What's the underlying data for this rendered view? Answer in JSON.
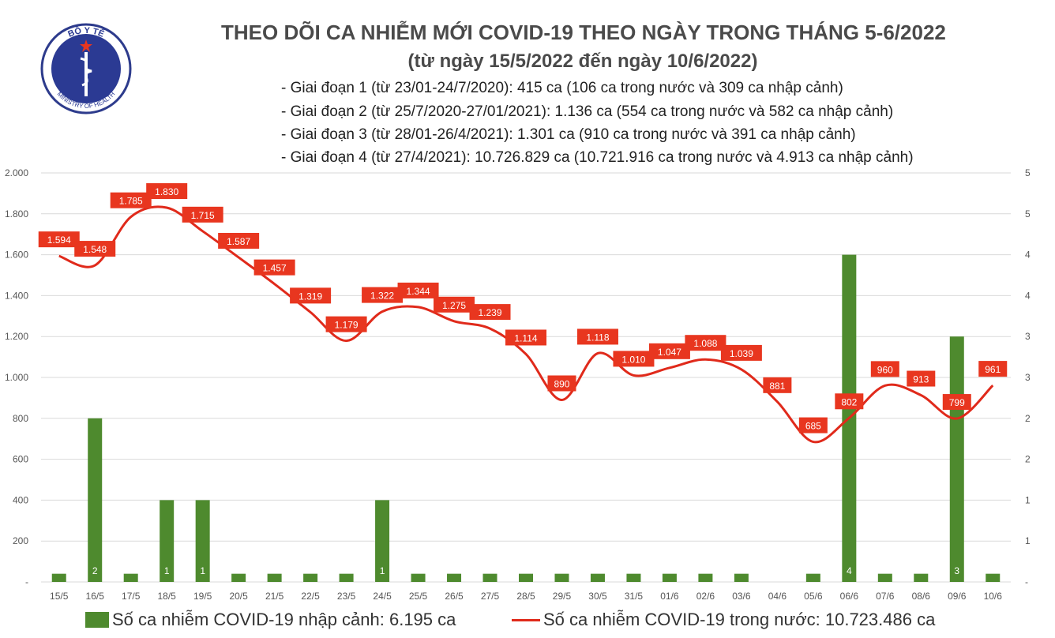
{
  "header": {
    "title": "THEO DÕI CA NHIỄM MỚI COVID-19 THEO NGÀY TRONG THÁNG 5-6/2022",
    "subtitle": "(từ ngày 15/5/2022 đến ngày 10/6/2022)",
    "stages": [
      "- Giai đoạn 1 (từ 23/01-24/7/2020): 415 ca (106 ca trong nước và 309 ca nhập cảnh)",
      "- Giai đoạn 2 (từ 25/7/2020-27/01/2021): 1.136 ca (554 ca trong nước và 582 ca nhập cảnh)",
      "- Giai đoạn 3 (từ 28/01-26/4/2021): 1.301 ca (910 ca trong nước và 391 ca nhập cảnh)",
      "- Giai đoạn 4 (từ 27/4/2021): 10.726.829 ca (10.721.916 ca trong nước và 4.913 ca nhập cảnh)"
    ]
  },
  "logo": {
    "top_text": "BỘ Y TẾ",
    "bottom_text": "MINISTRY OF HEALTH"
  },
  "legend": {
    "bar_label": "Số ca nhiễm COVID-19 nhập cảnh: 6.195 ca",
    "line_label": "Số ca nhiễm COVID-19 trong nước: 10.723.486 ca"
  },
  "colors": {
    "bar": "#4e8a2e",
    "line": "#e02a1b",
    "label_bg": "#e8361f",
    "grid": "#d9d9d9",
    "axis_text": "#555555"
  },
  "chart_data": {
    "type": "bar",
    "categories": [
      "15/5",
      "16/5",
      "17/5",
      "18/5",
      "19/5",
      "20/5",
      "21/5",
      "22/5",
      "23/5",
      "24/5",
      "25/5",
      "26/5",
      "27/5",
      "28/5",
      "29/5",
      "30/5",
      "31/5",
      "01/6",
      "02/6",
      "03/6",
      "04/6",
      "05/6",
      "06/6",
      "07/6",
      "08/6",
      "09/6",
      "10/6"
    ],
    "series": [
      {
        "name": "Số ca nhiễm COVID-19 nhập cảnh",
        "type": "bar",
        "axis": "right",
        "values": [
          0,
          2,
          0,
          1,
          1,
          0,
          0,
          0,
          0,
          1,
          0,
          0,
          0,
          0,
          0,
          0,
          0,
          0,
          0,
          0,
          null,
          0,
          4,
          0,
          0,
          3,
          0
        ],
        "labels": [
          "-",
          "2",
          "-",
          "1",
          "1",
          "-",
          "-",
          "-",
          "-",
          "1",
          "-",
          "-",
          "-",
          "-",
          "-",
          "-",
          "-",
          "-",
          "-",
          "-",
          "",
          "-",
          "4",
          "-",
          "-",
          "3",
          "-"
        ]
      },
      {
        "name": "Số ca nhiễm COVID-19 trong nước",
        "type": "line",
        "axis": "left",
        "values": [
          1594,
          1548,
          1785,
          1830,
          1715,
          1587,
          1457,
          1319,
          1179,
          1322,
          1344,
          1275,
          1239,
          1114,
          890,
          1118,
          1010,
          1047,
          1088,
          1039,
          881,
          685,
          802,
          960,
          913,
          799,
          961
        ],
        "labels": [
          "1.594",
          "1.548",
          "1.785",
          "1.830",
          "1.715",
          "1.587",
          "1.457",
          "1.319",
          "1.179",
          "1.322",
          "1.344",
          "1.275",
          "1.239",
          "1.114",
          "890",
          "1.118",
          "1.010",
          "1.047",
          "1.088",
          "1.039",
          "881",
          "685",
          "802",
          "960",
          "913",
          "799",
          "961"
        ]
      }
    ],
    "y_left": {
      "min": 0,
      "max": 2000,
      "ticks": [
        "-",
        "200",
        "400",
        "600",
        "800",
        "1.000",
        "1.200",
        "1.400",
        "1.600",
        "1.800",
        "2.000"
      ]
    },
    "y_right": {
      "min": 0,
      "max": 5,
      "ticks": [
        "-",
        "1",
        "1",
        "2",
        "2",
        "3",
        "3",
        "4",
        "4",
        "5",
        "5"
      ]
    },
    "grid": true,
    "legend_position": "bottom"
  }
}
